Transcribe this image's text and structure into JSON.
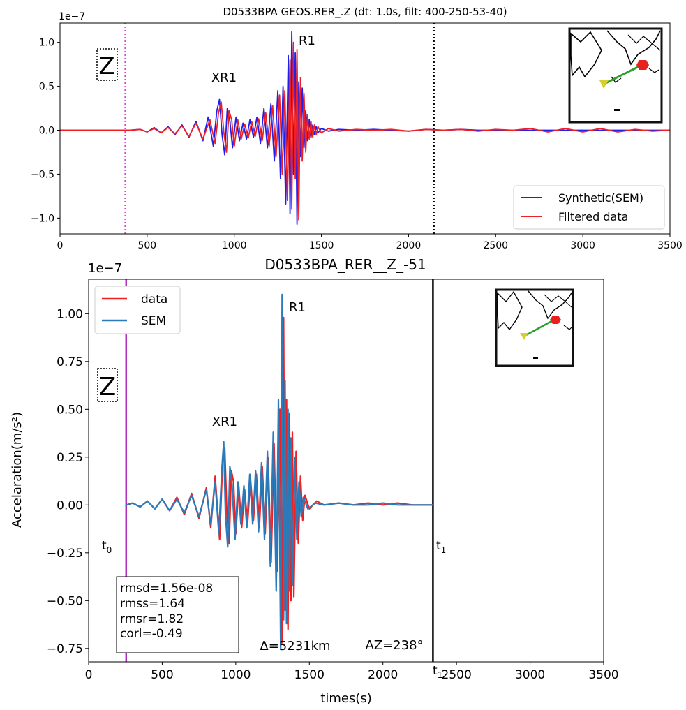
{
  "chart_data": [
    {
      "type": "line",
      "title": "D0533BPA GEOS.RER_.Z (dt: 1.0s, filt: 400-250-53-40)",
      "xlabel": "",
      "ylabel": "",
      "y_exponent": "1e−7",
      "xlim": [
        0,
        3500
      ],
      "ylim": [
        -1.18,
        1.22
      ],
      "xticks": [
        0,
        500,
        1000,
        1500,
        2000,
        2500,
        3000,
        3500
      ],
      "xtick_labels": [
        "0",
        "500",
        "1000",
        "1500",
        "2000",
        "2500",
        "3000",
        "3500"
      ],
      "yticks": [
        -1.0,
        -0.5,
        0.0,
        0.5,
        1.0
      ],
      "ytick_labels": [
        "−1.0",
        "−0.5",
        "0.0",
        "0.5",
        "1.0"
      ],
      "component_label": "Z",
      "annotations": [
        {
          "text": "XR1",
          "x": 1000,
          "y": 0.6
        },
        {
          "text": "R1",
          "x": 1420,
          "y": 1.02
        }
      ],
      "vlines": [
        {
          "x": 375,
          "color": "#e040e0",
          "style": "dotted"
        },
        {
          "x": 2145,
          "color": "#000000",
          "style": "dotted"
        }
      ],
      "legend": {
        "position": "lower-right",
        "entries": [
          {
            "label": "Synthetic(SEM)",
            "color": "#1f1ff0"
          },
          {
            "label": "Filtered data",
            "color": "#f02020"
          }
        ]
      },
      "grid": false,
      "series": [
        {
          "name": "Synthetic(SEM)",
          "color": "#1f1ff0",
          "x": [
            0,
            300,
            400,
            460,
            500,
            540,
            580,
            620,
            660,
            700,
            740,
            780,
            820,
            850,
            880,
            900,
            915,
            930,
            945,
            960,
            975,
            990,
            1010,
            1030,
            1050,
            1070,
            1090,
            1110,
            1130,
            1150,
            1170,
            1190,
            1210,
            1230,
            1250,
            1265,
            1280,
            1295,
            1310,
            1320,
            1330,
            1340,
            1350,
            1360,
            1370,
            1380,
            1390,
            1400,
            1410,
            1420,
            1430,
            1440,
            1450,
            1460,
            1470,
            1480,
            1500,
            1540,
            1600,
            1700,
            1800,
            1900,
            2000,
            2100,
            2200,
            2300,
            2400,
            2500,
            2600,
            2800,
            3000,
            3200,
            3500
          ],
          "y": [
            0,
            0,
            0,
            0.01,
            -0.02,
            0.03,
            -0.03,
            0.04,
            -0.05,
            0.06,
            -0.08,
            0.1,
            -0.12,
            0.15,
            -0.18,
            0.22,
            0.35,
            -0.05,
            -0.28,
            0.25,
            0.1,
            -0.2,
            0.15,
            -0.12,
            0.08,
            -0.1,
            0.12,
            -0.08,
            0.15,
            -0.15,
            0.25,
            -0.2,
            0.3,
            -0.35,
            0.45,
            -0.55,
            0.5,
            -0.84,
            0.85,
            -0.95,
            1.12,
            -0.5,
            0.88,
            -1.07,
            0.55,
            -0.3,
            0.48,
            -0.2,
            0.22,
            -0.12,
            0.12,
            -0.08,
            0.06,
            -0.05,
            0.04,
            -0.03,
            0.02,
            -0.01,
            0.01,
            0,
            0.01,
            0,
            -0.01,
            0.01,
            0,
            0.01,
            0,
            0,
            0,
            0,
            0,
            0,
            0
          ]
        },
        {
          "name": "Filtered data",
          "color": "#f02020",
          "x": [
            0,
            300,
            400,
            460,
            500,
            540,
            580,
            620,
            660,
            700,
            740,
            780,
            820,
            860,
            890,
            910,
            925,
            940,
            955,
            970,
            985,
            1000,
            1020,
            1040,
            1060,
            1080,
            1100,
            1120,
            1140,
            1160,
            1180,
            1200,
            1220,
            1240,
            1260,
            1275,
            1290,
            1305,
            1320,
            1330,
            1340,
            1350,
            1360,
            1370,
            1380,
            1390,
            1400,
            1410,
            1420,
            1430,
            1440,
            1450,
            1460,
            1470,
            1480,
            1500,
            1540,
            1600,
            1700,
            1800,
            1900,
            2000,
            2100,
            2200,
            2300,
            2400,
            2500,
            2600,
            2700,
            2800,
            2900,
            3000,
            3100,
            3200,
            3300,
            3400,
            3500
          ],
          "y": [
            0,
            0,
            0,
            0.01,
            -0.02,
            0.02,
            -0.03,
            0.03,
            -0.04,
            0.05,
            -0.07,
            0.08,
            -0.1,
            0.12,
            -0.15,
            0.2,
            0.32,
            -0.02,
            -0.25,
            0.22,
            0.12,
            -0.18,
            0.12,
            -0.1,
            0.07,
            -0.09,
            0.1,
            -0.07,
            0.13,
            -0.12,
            0.2,
            -0.18,
            0.28,
            -0.3,
            0.4,
            -0.5,
            0.45,
            -0.8,
            0.8,
            -0.9,
            1.0,
            -0.55,
            0.92,
            -1.02,
            0.6,
            -0.35,
            0.42,
            -0.25,
            0.18,
            -0.1,
            0.1,
            -0.08,
            0.06,
            -0.05,
            0.04,
            -0.03,
            0.02,
            -0.01,
            0.01,
            0,
            0.01,
            -0.01,
            0.01,
            0,
            0.01,
            -0.01,
            0.01,
            0,
            0.02,
            -0.02,
            0.02,
            -0.02,
            0.02,
            -0.02,
            0.01,
            -0.01,
            0
          ]
        }
      ]
    },
    {
      "type": "line",
      "title": "D0533BPA_RER__Z_-51",
      "xlabel": "times(s)",
      "ylabel": "Accelaration(m/s²)",
      "y_exponent": "1e−7",
      "xlim": [
        0,
        3500
      ],
      "ylim": [
        -0.82,
        1.18
      ],
      "xticks": [
        0,
        500,
        1000,
        1500,
        2000,
        2500,
        3000,
        3500
      ],
      "xtick_labels": [
        "0",
        "500",
        "1000",
        "1500",
        "2000",
        "2500",
        "3000",
        "3500"
      ],
      "yticks": [
        -0.75,
        -0.5,
        -0.25,
        0.0,
        0.25,
        0.5,
        0.75,
        1.0
      ],
      "ytick_labels": [
        "−0.75",
        "−0.50",
        "−0.25",
        "0.00",
        "0.25",
        "0.50",
        "0.75",
        "1.00"
      ],
      "component_label": "Z",
      "annotations": [
        {
          "text": "XR1",
          "x": 1000,
          "y": 0.4
        },
        {
          "text": "R1",
          "x": 1410,
          "y": 1.02
        },
        {
          "text": "Δ=5231km",
          "x": 1400,
          "y": -0.75
        },
        {
          "text": "AZ=238°",
          "x": 2100,
          "y": -0.75
        }
      ],
      "time_markers": {
        "t0_label": "t",
        "t0_sub": "0",
        "t1_label": "t",
        "t1_sub": "1",
        "t0": 255,
        "t1": 2340
      },
      "stats_box": [
        "rmsd=1.56e-08",
        "rmss=1.64",
        "rmsr=1.82",
        "corl=-0.49"
      ],
      "vlines": [
        {
          "x": 255,
          "color": "#b030c0",
          "style": "solid"
        },
        {
          "x": 2340,
          "color": "#000000",
          "style": "solid"
        }
      ],
      "legend": {
        "position": "top-left",
        "entries": [
          {
            "label": "data",
            "color": "#f02020"
          },
          {
            "label": "SEM",
            "color": "#2b7bba"
          }
        ]
      },
      "grid": false,
      "series": [
        {
          "name": "data",
          "color": "#f02020",
          "x": [
            255,
            300,
            350,
            400,
            450,
            500,
            550,
            600,
            650,
            700,
            750,
            800,
            830,
            860,
            890,
            910,
            925,
            940,
            955,
            970,
            985,
            1000,
            1020,
            1040,
            1060,
            1080,
            1100,
            1120,
            1140,
            1160,
            1180,
            1200,
            1220,
            1240,
            1260,
            1280,
            1300,
            1315,
            1325,
            1335,
            1345,
            1355,
            1365,
            1375,
            1385,
            1395,
            1410,
            1425,
            1440,
            1455,
            1470,
            1500,
            1550,
            1600,
            1700,
            1800,
            1900,
            2000,
            2100,
            2200,
            2340
          ],
          "y": [
            0,
            0.01,
            -0.01,
            0.02,
            -0.02,
            0.03,
            -0.03,
            0.04,
            -0.05,
            0.06,
            -0.07,
            0.09,
            -0.12,
            0.15,
            -0.18,
            0.22,
            0.3,
            -0.05,
            -0.2,
            0.18,
            0.12,
            -0.15,
            0.1,
            -0.12,
            0.08,
            -0.1,
            0.14,
            -0.08,
            0.16,
            -0.12,
            0.2,
            -0.15,
            0.25,
            -0.3,
            0.32,
            -0.35,
            0.5,
            -0.72,
            0.98,
            -0.55,
            0.55,
            -0.65,
            0.48,
            -0.5,
            0.38,
            -0.48,
            0.28,
            -0.2,
            0.15,
            -0.08,
            0.05,
            -0.02,
            0.02,
            0,
            0.01,
            0,
            0.01,
            0,
            0.01,
            0,
            0
          ]
        },
        {
          "name": "SEM",
          "color": "#2b7bba",
          "x": [
            255,
            300,
            350,
            400,
            450,
            500,
            550,
            600,
            650,
            700,
            750,
            800,
            830,
            860,
            885,
            905,
            918,
            930,
            945,
            960,
            975,
            995,
            1015,
            1035,
            1055,
            1075,
            1095,
            1115,
            1135,
            1155,
            1175,
            1195,
            1215,
            1235,
            1255,
            1275,
            1290,
            1305,
            1315,
            1325,
            1335,
            1345,
            1355,
            1365,
            1375,
            1385,
            1400,
            1415,
            1430,
            1445,
            1460,
            1490,
            1540,
            1600,
            1700,
            1800,
            1900,
            2000,
            2100,
            2200,
            2340
          ],
          "y": [
            0,
            0.01,
            -0.01,
            0.02,
            -0.02,
            0.03,
            -0.03,
            0.03,
            -0.04,
            0.05,
            -0.06,
            0.08,
            -0.1,
            0.12,
            -0.15,
            0.18,
            0.33,
            -0.05,
            -0.22,
            0.2,
            0.1,
            -0.18,
            0.12,
            -0.1,
            0.1,
            -0.12,
            0.16,
            -0.1,
            0.18,
            -0.14,
            0.22,
            -0.18,
            0.28,
            -0.32,
            0.38,
            -0.45,
            0.55,
            -0.75,
            1.1,
            -0.6,
            0.65,
            -0.62,
            0.5,
            -0.45,
            0.35,
            -0.42,
            0.25,
            -0.18,
            0.12,
            -0.06,
            0.04,
            -0.02,
            0.01,
            0,
            0.01,
            0,
            0,
            0.01,
            0,
            0,
            0
          ]
        }
      ]
    }
  ]
}
